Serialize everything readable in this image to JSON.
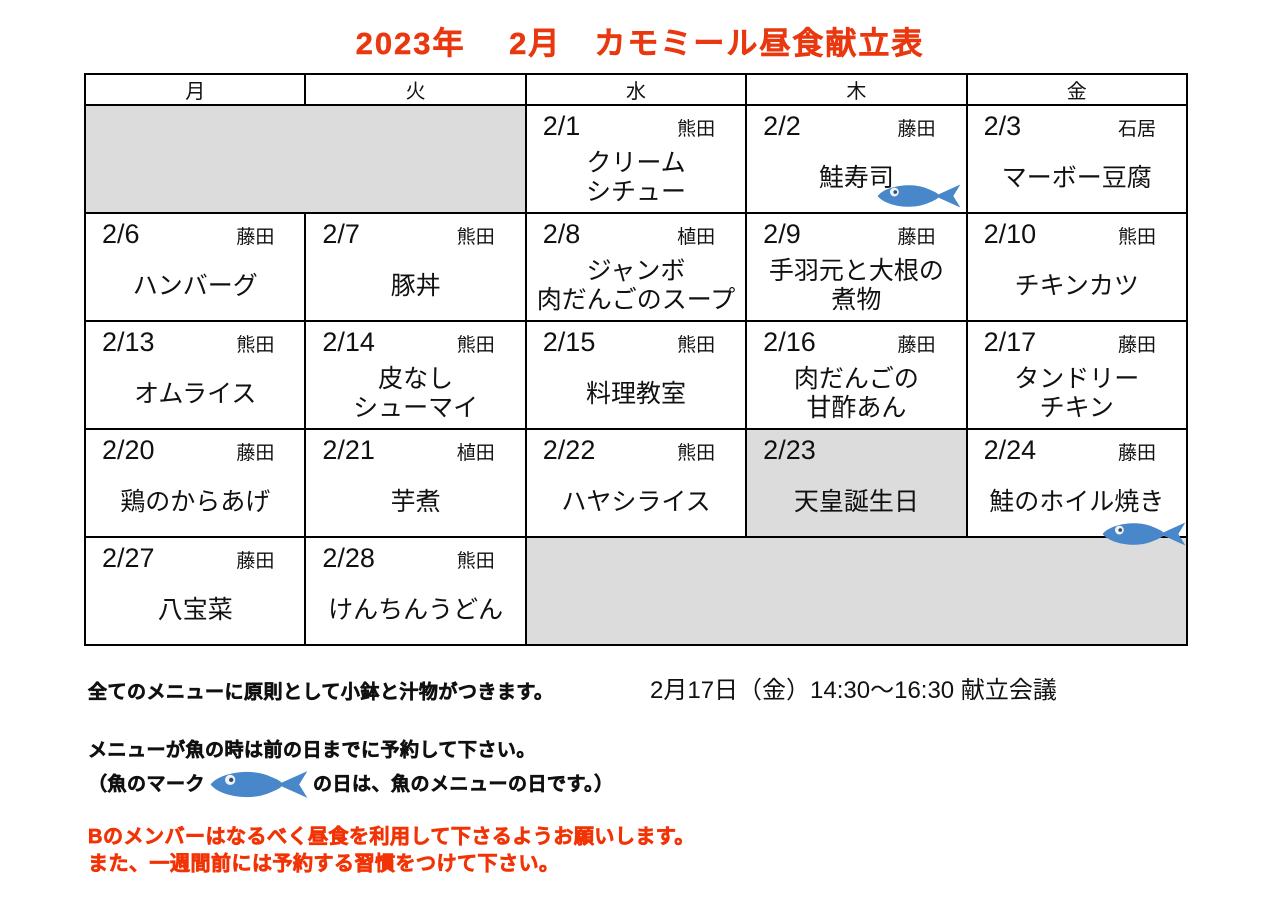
{
  "title": "2023年　 2月　カモミール昼食献立表",
  "colors": {
    "accent_red": "#e9380f",
    "note_red": "#f23305",
    "holiday_gray": "#dcdcdc",
    "fish_blue": "#4787ca"
  },
  "calendar": {
    "day_headers": [
      "月",
      "火",
      "水",
      "木",
      "金"
    ],
    "weeks": [
      {
        "cells": [
          {
            "type": "empty",
            "span": 2
          },
          {
            "type": "menu",
            "date": "2/1",
            "cook": "熊田",
            "menu_lines": [
              "クリーム",
              "シチュー"
            ]
          },
          {
            "type": "menu",
            "date": "2/2",
            "cook": "藤田",
            "menu_lines": [
              "鮭寿司"
            ],
            "fish": true,
            "fish_pos": "inline"
          },
          {
            "type": "menu",
            "date": "2/3",
            "cook": "石居",
            "menu_lines": [
              "マーボー豆腐"
            ]
          }
        ]
      },
      {
        "cells": [
          {
            "type": "menu",
            "date": "2/6",
            "cook": "藤田",
            "menu_lines": [
              "ハンバーグ"
            ]
          },
          {
            "type": "menu",
            "date": "2/7",
            "cook": "熊田",
            "menu_lines": [
              "豚丼"
            ]
          },
          {
            "type": "menu",
            "date": "2/8",
            "cook": "植田",
            "menu_lines": [
              "ジャンボ",
              "肉だんごのスープ"
            ]
          },
          {
            "type": "menu",
            "date": "2/9",
            "cook": "藤田",
            "menu_lines": [
              "手羽元と大根の",
              "煮物"
            ]
          },
          {
            "type": "menu",
            "date": "2/10",
            "cook": "熊田",
            "menu_lines": [
              "チキンカツ"
            ]
          }
        ]
      },
      {
        "cells": [
          {
            "type": "menu",
            "date": "2/13",
            "cook": "熊田",
            "menu_lines": [
              "オムライス"
            ]
          },
          {
            "type": "menu",
            "date": "2/14",
            "cook": "熊田",
            "menu_lines": [
              "皮なし",
              "シューマイ"
            ]
          },
          {
            "type": "menu",
            "date": "2/15",
            "cook": "熊田",
            "menu_lines": [
              "料理教室"
            ]
          },
          {
            "type": "menu",
            "date": "2/16",
            "cook": "藤田",
            "menu_lines": [
              "肉だんごの",
              "甘酢あん"
            ]
          },
          {
            "type": "menu",
            "date": "2/17",
            "cook": "藤田",
            "menu_lines": [
              "タンドリー",
              "チキン"
            ]
          }
        ]
      },
      {
        "cells": [
          {
            "type": "menu",
            "date": "2/20",
            "cook": "藤田",
            "menu_lines": [
              "鶏のからあげ"
            ]
          },
          {
            "type": "menu",
            "date": "2/21",
            "cook": "植田",
            "menu_lines": [
              "芋煮"
            ]
          },
          {
            "type": "menu",
            "date": "2/22",
            "cook": "熊田",
            "menu_lines": [
              "ハヤシライス"
            ]
          },
          {
            "type": "holiday",
            "date": "2/23",
            "menu_lines": [
              "天皇誕生日"
            ]
          },
          {
            "type": "menu",
            "date": "2/24",
            "cook": "藤田",
            "menu_lines": [
              "鮭のホイル焼き"
            ],
            "fish": true,
            "fish_pos": "corner"
          }
        ]
      },
      {
        "cells": [
          {
            "type": "menu",
            "date": "2/27",
            "cook": "藤田",
            "menu_lines": [
              "八宝菜"
            ]
          },
          {
            "type": "menu",
            "date": "2/28",
            "cook": "熊田",
            "menu_lines": [
              "けんちんうどん"
            ]
          },
          {
            "type": "empty",
            "span": 3
          }
        ]
      }
    ]
  },
  "notes": {
    "side_dish": "全てのメニューに原則として小鉢と汁物がつきます。",
    "meeting": "2月17日（金）14:30～16:30 献立会議",
    "fish_line1": "メニューが魚の時は前の日までに予約して下さい。",
    "fish_line2_prefix": "（魚のマーク",
    "fish_line2_suffix": "の日は、魚のメニューの日です。）",
    "red_line1": "Bのメンバーはなるべく昼食を利用して下さるようお願いします。",
    "red_line2": "また、一週間前には予約する習慣をつけて下さい。"
  },
  "icons": {
    "fish": "fish-icon"
  }
}
